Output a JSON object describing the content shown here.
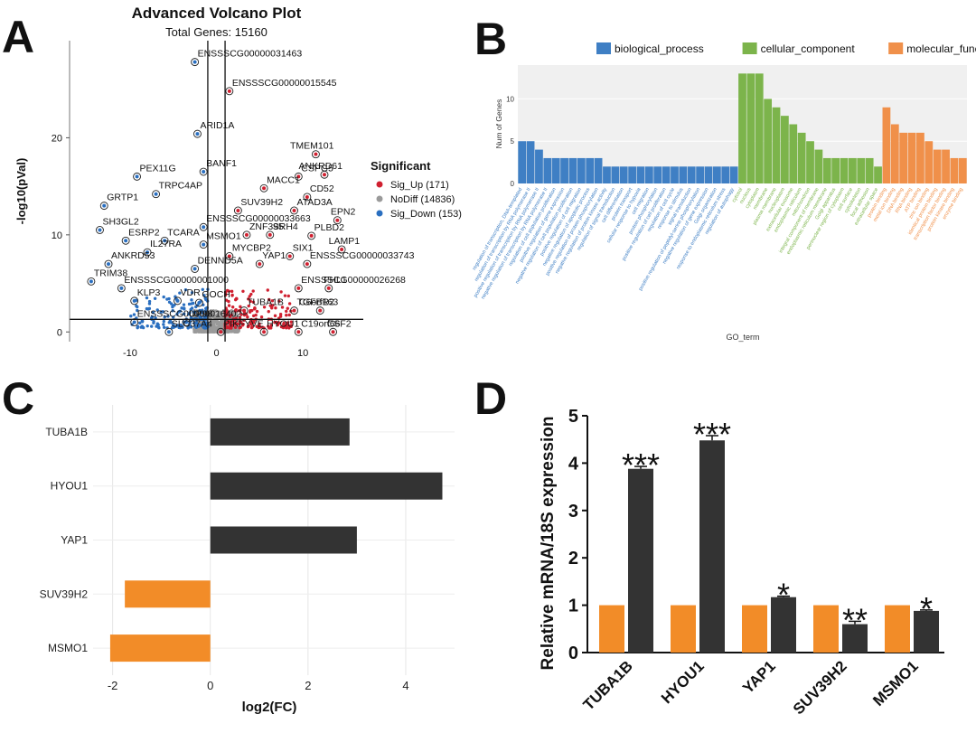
{
  "panel_letters": [
    "A",
    "B",
    "C",
    "D"
  ],
  "colors": {
    "sig_up": "#d02030",
    "no_diff": "#9a9a9a",
    "sig_down": "#2a6fc0",
    "biological_process": "#3f7fc4",
    "cellular_component": "#7cb44b",
    "molecular_function": "#f0904a",
    "orange": "#f28c28",
    "dark": "#333333"
  },
  "chart_data": [
    {
      "panel": "A",
      "type": "scatter",
      "title": "Advanced Volcano Plot",
      "subtitle": "Total Genes: 15160",
      "xlabel": "",
      "ylabel": "-log10(pVal)",
      "xlim": [
        -17,
        17
      ],
      "ylim": [
        -1,
        30
      ],
      "x_ticks": [
        "-10",
        "0",
        "10"
      ],
      "x_tick_values": [
        -10,
        0,
        10
      ],
      "y_ticks": [
        "0",
        "10",
        "20"
      ],
      "y_tick_values": [
        0,
        10,
        20
      ],
      "threshold_y": 1.3,
      "threshold_x": [
        -1,
        1
      ],
      "legend": {
        "title": "Significant",
        "placement": "right",
        "entries": [
          "Sig_Up (171)",
          "NoDiff (14836)",
          "Sig_Down (153)"
        ]
      },
      "labels": [
        {
          "text": "ENSSSCG00000031463",
          "x": -2.5,
          "y": 27.8,
          "group": "down"
        },
        {
          "text": "ENSSSCG00000015545",
          "x": 1.5,
          "y": 24.8,
          "group": "up"
        },
        {
          "text": "ARID1A",
          "x": -2.2,
          "y": 20.4,
          "group": "down"
        },
        {
          "text": "TMEM101",
          "x": 11.5,
          "y": 18.3,
          "group": "up"
        },
        {
          "text": "CSPG5",
          "x": 9.5,
          "y": 16.0,
          "group": "up"
        },
        {
          "text": "ANKRD61",
          "x": 12.5,
          "y": 16.2,
          "group": "up"
        },
        {
          "text": "PEX11G",
          "x": -9.2,
          "y": 16.0,
          "group": "down"
        },
        {
          "text": "BANF1",
          "x": -1.5,
          "y": 16.5,
          "group": "down"
        },
        {
          "text": "MACC1",
          "x": 5.5,
          "y": 14.8,
          "group": "up"
        },
        {
          "text": "CD52",
          "x": 10.5,
          "y": 13.9,
          "group": "up"
        },
        {
          "text": "TRPC4AP",
          "x": -7.0,
          "y": 14.2,
          "group": "down"
        },
        {
          "text": "GRTP1",
          "x": -13.0,
          "y": 13.0,
          "group": "down"
        },
        {
          "text": "ATAD3A",
          "x": 9.0,
          "y": 12.5,
          "group": "up"
        },
        {
          "text": "SUV39H2",
          "x": 2.5,
          "y": 12.5,
          "group": "up"
        },
        {
          "text": "EPN2",
          "x": 14.0,
          "y": 11.5,
          "group": "up"
        },
        {
          "text": "SH3GL2",
          "x": -13.5,
          "y": 10.5,
          "group": "down"
        },
        {
          "text": "ENSSSCG00000033663",
          "x": -1.5,
          "y": 10.8,
          "group": "down"
        },
        {
          "text": "ZNF395",
          "x": 3.5,
          "y": 10.0,
          "group": "up"
        },
        {
          "text": "SRH4",
          "x": 6.2,
          "y": 10.0,
          "group": "up"
        },
        {
          "text": "PLBD2",
          "x": 11.0,
          "y": 9.9,
          "group": "up"
        },
        {
          "text": "LAMP1",
          "x": 14.5,
          "y": 8.5,
          "group": "up"
        },
        {
          "text": "ESRP2",
          "x": -10.5,
          "y": 9.4,
          "group": "down"
        },
        {
          "text": "TCARA",
          "x": -6.0,
          "y": 9.4,
          "group": "down"
        },
        {
          "text": "MSMO1",
          "x": -1.5,
          "y": 9.0,
          "group": "down"
        },
        {
          "text": "IL27RA",
          "x": -8.0,
          "y": 8.2,
          "group": "down"
        },
        {
          "text": "MYCBP2",
          "x": 1.5,
          "y": 7.8,
          "group": "up"
        },
        {
          "text": "SIX1",
          "x": 8.5,
          "y": 7.8,
          "group": "up"
        },
        {
          "text": "ANKRD53",
          "x": -12.5,
          "y": 7.0,
          "group": "down"
        },
        {
          "text": "YAP1",
          "x": 5.0,
          "y": 7.0,
          "group": "up"
        },
        {
          "text": "ENSSSCG00000033743",
          "x": 10.5,
          "y": 7.0,
          "group": "up"
        },
        {
          "text": "DENND5A",
          "x": -2.5,
          "y": 6.5,
          "group": "down"
        },
        {
          "text": "TRIM38",
          "x": -14.5,
          "y": 5.2,
          "group": "down"
        },
        {
          "text": "ENSSSCG00000001000",
          "x": -11.0,
          "y": 4.5,
          "group": "down"
        },
        {
          "text": "ENSSSCG00000026268",
          "x": 9.5,
          "y": 4.5,
          "group": "up"
        },
        {
          "text": "FHL1",
          "x": 13.0,
          "y": 4.5,
          "group": "up"
        },
        {
          "text": "KLP3",
          "x": -9.5,
          "y": 3.2,
          "group": "down"
        },
        {
          "text": "VDR",
          "x": -4.5,
          "y": 3.2,
          "group": "down"
        },
        {
          "text": "GOCH",
          "x": -2.0,
          "y": 3.0,
          "group": "down"
        },
        {
          "text": "TUBA1B",
          "x": 3.2,
          "y": 2.2,
          "group": "up"
        },
        {
          "text": "TGFBR2",
          "x": 9.0,
          "y": 2.2,
          "group": "up"
        },
        {
          "text": "C6orf163",
          "x": 12.0,
          "y": 2.2,
          "group": "up"
        },
        {
          "text": "ENSSSCG00000016402",
          "x": -9.5,
          "y": 1.0,
          "group": "down"
        },
        {
          "text": "UP98",
          "x": -3.5,
          "y": 1.0,
          "group": "down"
        },
        {
          "text": "SLC37A4",
          "x": -5.5,
          "y": 0.0,
          "group": "down"
        },
        {
          "text": "PIKFYVE",
          "x": 0.5,
          "y": 0.0,
          "group": "up"
        },
        {
          "text": "HYOU1",
          "x": 5.5,
          "y": 0.0,
          "group": "up"
        },
        {
          "text": "C19orf66",
          "x": 9.5,
          "y": 0.0,
          "group": "up"
        },
        {
          "text": "CSF2",
          "x": 13.5,
          "y": 0.0,
          "group": "up"
        }
      ]
    },
    {
      "panel": "B",
      "type": "bar",
      "title": "",
      "xlabel": "GO_term",
      "ylabel": "Num of Genes",
      "ylim": [
        0,
        14
      ],
      "y_ticks": [
        "0",
        "5",
        "10"
      ],
      "y_tick_values": [
        0,
        5,
        10
      ],
      "legend_placement": "top",
      "series": [
        {
          "name": "biological_process",
          "values": [
            5,
            5,
            4,
            3,
            3,
            3,
            3,
            3,
            3,
            3,
            2,
            2,
            2,
            2,
            2,
            2,
            2,
            2,
            2,
            2,
            2,
            2,
            2,
            2,
            2,
            2
          ],
          "categories": [
            "regulation of transcription, DNA-templated",
            "regulation of transcription by RNA polymerase II",
            "positive regulation of transcription by RNA polymerase II",
            "negative regulation of transcription by RNA polymerase II",
            "regulation of cell population proliferation",
            "positive regulation of gene expression",
            "negative regulation of cell population proliferation",
            "positive regulation of cell migration",
            "negative regulation of apoptotic process",
            "positive regulation of protein phosphorylation",
            "negative regulation of protein kinase activity",
            "regulation of signal transduction",
            "cell differentiation",
            "protein transport",
            "cellular response to hypoxia",
            "cell migration",
            "protein phosphorylation",
            "positive regulation of cell proliferation",
            "regulation of cell cycle",
            "response to stimulus",
            "signal transduction",
            "positive regulation of peptidyl-serine phosphorylation",
            "negative regulation of gene expression",
            "Golgi organization",
            "response to endoplasmic reticulum stress",
            "regulation of autophagy"
          ]
        },
        {
          "name": "cellular_component",
          "values": [
            13,
            13,
            13,
            10,
            9,
            8,
            7,
            6,
            5,
            4,
            3,
            3,
            3,
            3,
            3,
            3,
            2
          ],
          "categories": [
            "cytosol",
            "nucleus",
            "cytoplasm",
            "membrane",
            "plasma membrane",
            "nucleoplasm",
            "extracellular exosome",
            "endoplasmic reticulum",
            "mitochondrion",
            "integral component of membrane",
            "endoplasmic reticulum membrane",
            "Golgi apparatus",
            "perinuclear region of cytoplasm",
            "cell surface",
            "cytoskeleton",
            "focal adhesion",
            "extracellular space"
          ]
        },
        {
          "name": "molecular_function",
          "values": [
            9,
            7,
            6,
            6,
            6,
            5,
            4,
            4,
            3,
            3
          ],
          "categories": [
            "protein binding",
            "metal ion binding",
            "DNA binding",
            "RNA binding",
            "ATP binding",
            "zinc ion binding",
            "identical protein binding",
            "transcription factor binding",
            "protein kinase binding",
            "enzyme binding"
          ]
        }
      ]
    },
    {
      "panel": "C",
      "type": "bar",
      "orientation": "horizontal",
      "title": "",
      "xlabel": "log2(FC)",
      "ylabel": "",
      "categories": [
        "TUBA1B",
        "HYOU1",
        "YAP1",
        "SUV39H2",
        "MSMO1"
      ],
      "values": [
        2.85,
        4.75,
        3.0,
        -1.75,
        -2.05
      ],
      "xlim": [
        -2.4,
        5.0
      ],
      "x_ticks": [
        "-2",
        "0",
        "2",
        "4"
      ],
      "x_tick_values": [
        -2,
        0,
        2,
        4
      ],
      "grid": true
    },
    {
      "panel": "D",
      "type": "bar",
      "title": "",
      "xlabel": "",
      "ylabel": "Relative mRNA/18S expression",
      "categories": [
        "TUBA1B",
        "HYOU1",
        "YAP1",
        "SUV39H2",
        "MSMO1"
      ],
      "ylim": [
        0,
        5
      ],
      "y_ticks": [
        "0",
        "1",
        "2",
        "3",
        "4",
        "5"
      ],
      "y_tick_values": [
        0,
        1,
        2,
        3,
        4,
        5
      ],
      "series": [
        {
          "values": [
            1,
            1,
            1,
            1,
            1
          ],
          "errors": [
            0,
            0,
            0,
            0,
            0
          ]
        },
        {
          "values": [
            3.88,
            4.48,
            1.17,
            0.6,
            0.88
          ],
          "errors": [
            0.05,
            0.1,
            0.02,
            0.06,
            0.02
          ]
        }
      ],
      "significance": [
        "***",
        "***",
        "*",
        "**",
        "*"
      ]
    }
  ]
}
